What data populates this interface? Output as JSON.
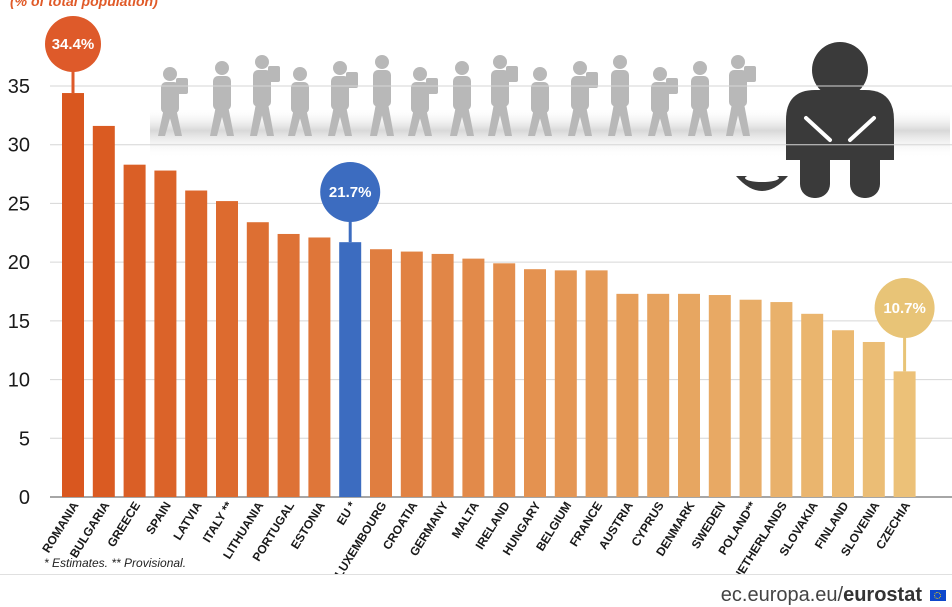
{
  "header_fragment": "(% of total population)",
  "footnote": "* Estimates. ** Provisional.",
  "source": {
    "domain": "ec.europa.eu/",
    "brand": "eurostat"
  },
  "colors": {
    "highlight_high": "#de5a2a",
    "highlight_eu": "#3c6cc0",
    "highlight_low": "#e8c477",
    "gradient_start": "#d9571f",
    "gradient_end": "#ecc178",
    "silhouettes": "#b8b8b8",
    "figure": "#3a3a3a"
  },
  "chart_data": {
    "type": "bar",
    "categories": [
      "ROMANIA",
      "BULGARIA",
      "GREECE",
      "SPAIN",
      "LATVIA",
      "ITALY **",
      "LITHUANIA",
      "PORTUGAL",
      "ESTONIA",
      "EU *",
      "LUXEMBOURG",
      "CROATIA",
      "GERMANY",
      "MALTA",
      "IRELAND",
      "HUNGARY",
      "BELGIUM",
      "FRANCE",
      "AUSTRIA",
      "CYPRUS",
      "DENMARK",
      "SWEDEN",
      "POLAND**",
      "NETHERLANDS",
      "SLOVAKIA",
      "FINLAND",
      "SLOVENIA",
      "CZECHIA"
    ],
    "values": [
      34.4,
      31.6,
      28.3,
      27.8,
      26.1,
      25.2,
      23.4,
      22.4,
      22.1,
      21.7,
      21.1,
      20.9,
      20.7,
      20.3,
      19.9,
      19.4,
      19.3,
      19.3,
      17.3,
      17.3,
      17.3,
      17.2,
      16.8,
      16.6,
      15.6,
      14.2,
      13.2,
      10.7
    ],
    "ylim": [
      0,
      35
    ],
    "yticks": [
      0,
      5,
      10,
      15,
      20,
      25,
      30,
      35
    ],
    "grid": true,
    "callouts": [
      {
        "index": 0,
        "label": "34.4%"
      },
      {
        "index": 9,
        "label": "21.7%"
      },
      {
        "index": 27,
        "label": "10.7%"
      }
    ]
  }
}
